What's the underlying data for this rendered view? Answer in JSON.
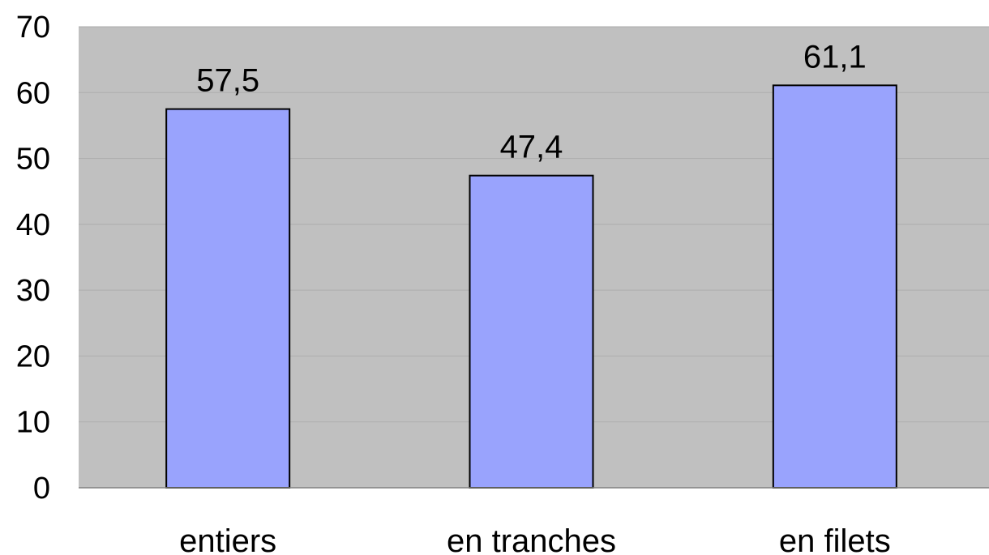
{
  "chart_data": {
    "type": "bar",
    "categories": [
      "entiers",
      "en tranches",
      "en filets"
    ],
    "values": [
      57.5,
      47.4,
      61.1
    ],
    "data_labels": [
      "57,5",
      "47,4",
      "61,1"
    ],
    "title": "",
    "xlabel": "",
    "ylabel": "",
    "ylim": [
      0,
      70
    ],
    "yticks": [
      0,
      10,
      20,
      30,
      40,
      50,
      60,
      70
    ],
    "grid": true,
    "legend": "none"
  },
  "colors": {
    "bar_fill": "#99a3fd",
    "bar_stroke": "#000000",
    "plot_background": "#c0c0c0",
    "gridline": "#adadad",
    "axis": "#808080"
  }
}
